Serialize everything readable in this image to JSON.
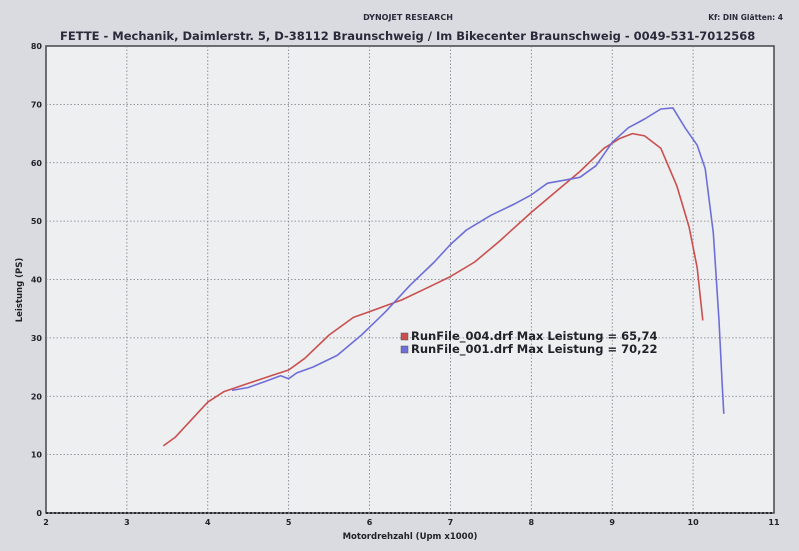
{
  "header": {
    "brand": "DYNOJET RESEARCH",
    "right_info": "Kf: DIN  Glätten: 4",
    "title": "FETTE - Mechanik, Daimlerstr. 5,  D-38112 Braunschweig / Im Bikecenter Braunschweig - 0049-531-7012568"
  },
  "chart_data": {
    "type": "line",
    "xlabel": "Motordrehzahl (Upm x1000)",
    "ylabel": "Leistung (PS)",
    "xlim": [
      2,
      11
    ],
    "ylim": [
      0,
      80
    ],
    "x_ticks": [
      "2",
      "3",
      "4",
      "5",
      "6",
      "7",
      "8",
      "9",
      "10",
      "11"
    ],
    "y_ticks": [
      "0",
      "10",
      "20",
      "30",
      "40",
      "50",
      "60",
      "70",
      "80"
    ],
    "grid": true,
    "legend_placement": "center",
    "series": [
      {
        "name": "RunFile_004.drf Max Leistung = 65,74",
        "color": "#c9504f",
        "points": [
          [
            3.45,
            11.5
          ],
          [
            3.6,
            13
          ],
          [
            3.8,
            16
          ],
          [
            4.0,
            19
          ],
          [
            4.2,
            20.8
          ],
          [
            4.5,
            22.2
          ],
          [
            4.8,
            23.6
          ],
          [
            5.0,
            24.5
          ],
          [
            5.2,
            26.5
          ],
          [
            5.5,
            30.5
          ],
          [
            5.8,
            33.5
          ],
          [
            6.0,
            34.5
          ],
          [
            6.2,
            35.5
          ],
          [
            6.4,
            36.5
          ],
          [
            6.7,
            38.5
          ],
          [
            7.0,
            40.5
          ],
          [
            7.3,
            43
          ],
          [
            7.6,
            46.5
          ],
          [
            8.0,
            51.5
          ],
          [
            8.3,
            55
          ],
          [
            8.6,
            58.5
          ],
          [
            8.9,
            62.5
          ],
          [
            9.1,
            64.2
          ],
          [
            9.25,
            65.0
          ],
          [
            9.4,
            64.6
          ],
          [
            9.6,
            62.5
          ],
          [
            9.8,
            56
          ],
          [
            9.95,
            49
          ],
          [
            10.05,
            42
          ],
          [
            10.12,
            33
          ]
        ]
      },
      {
        "name": "RunFile_001.drf Max Leistung = 70,22",
        "color": "#6e6ed8",
        "points": [
          [
            4.3,
            21.0
          ],
          [
            4.5,
            21.5
          ],
          [
            4.7,
            22.5
          ],
          [
            4.9,
            23.5
          ],
          [
            5.0,
            23.0
          ],
          [
            5.1,
            24
          ],
          [
            5.3,
            25
          ],
          [
            5.6,
            27
          ],
          [
            5.9,
            30.5
          ],
          [
            6.2,
            34.5
          ],
          [
            6.5,
            39
          ],
          [
            6.8,
            43
          ],
          [
            7.0,
            46
          ],
          [
            7.2,
            48.5
          ],
          [
            7.5,
            51
          ],
          [
            7.8,
            53
          ],
          [
            8.0,
            54.5
          ],
          [
            8.2,
            56.5
          ],
          [
            8.4,
            57
          ],
          [
            8.6,
            57.5
          ],
          [
            8.8,
            59.5
          ],
          [
            9.0,
            63.5
          ],
          [
            9.2,
            66
          ],
          [
            9.4,
            67.5
          ],
          [
            9.6,
            69.2
          ],
          [
            9.75,
            69.4
          ],
          [
            9.9,
            66
          ],
          [
            10.05,
            63
          ],
          [
            10.15,
            59
          ],
          [
            10.25,
            48
          ],
          [
            10.32,
            33
          ],
          [
            10.36,
            22
          ],
          [
            10.38,
            17
          ]
        ]
      }
    ]
  }
}
